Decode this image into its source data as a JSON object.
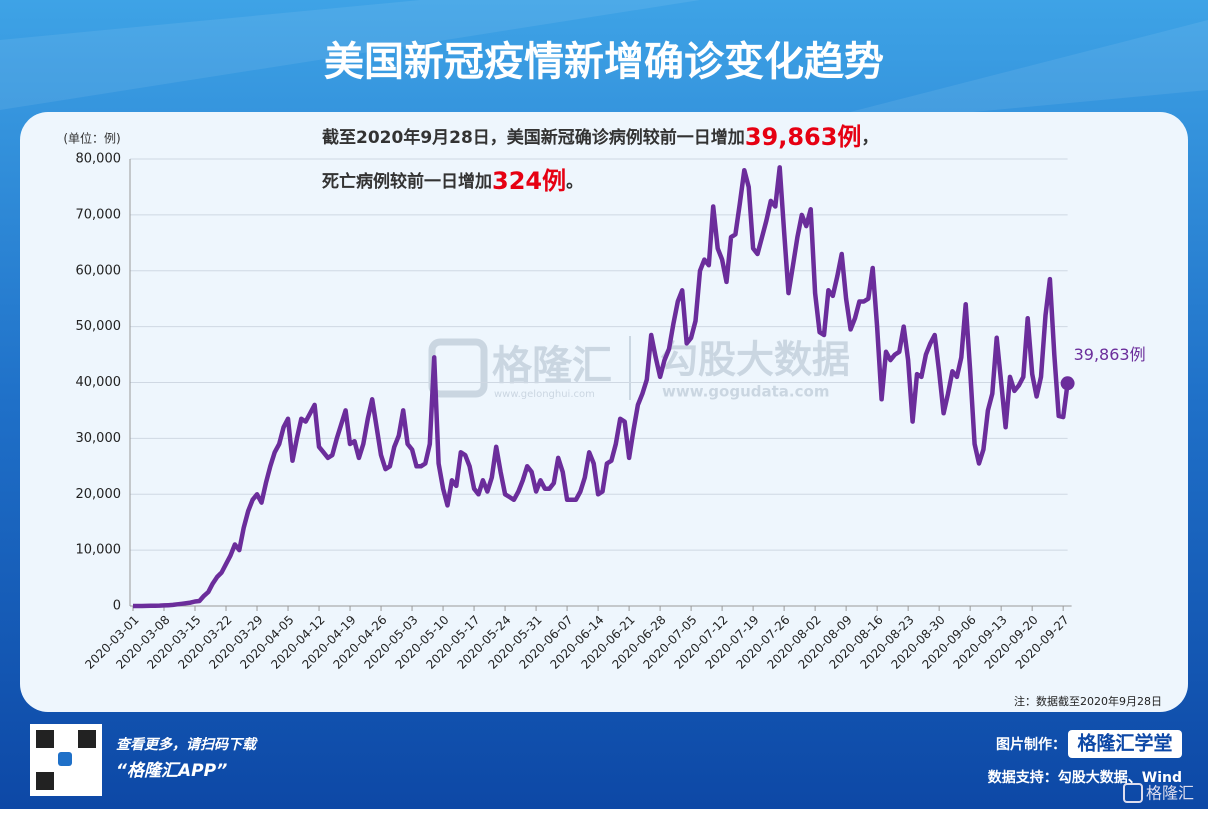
{
  "title": "美国新冠疫情新增确诊变化趋势",
  "chart_data": {
    "type": "line",
    "y_unit": "(单位：例)",
    "note": "注：数据截至2020年9月28日",
    "annotations": [
      [
        "截至2020年9月28日，美国新冠确诊病例较前一日增加",
        "39,863例",
        "，"
      ],
      [
        "死亡病例较前一日增加",
        "324例",
        "。"
      ]
    ],
    "end_label": "39,863例",
    "color": "#6b2d9b",
    "grid": true,
    "ylim": [
      0,
      80000
    ],
    "yticks": [
      0,
      {
        "value": 10000,
        "label": "10,000"
      },
      {
        "value": 20000,
        "label": "20,000"
      },
      {
        "value": 30000,
        "label": "30,000"
      },
      {
        "value": 40000,
        "label": "40,000"
      },
      {
        "value": 50000,
        "label": "50,000"
      },
      {
        "value": 60000,
        "label": "60,000"
      },
      {
        "value": 70000,
        "label": "70,000"
      },
      {
        "value": 80000,
        "label": "80,000"
      }
    ],
    "xticks": [
      "2020-03-01",
      "2020-03-08",
      "2020-03-15",
      "2020-03-22",
      "2020-03-29",
      "2020-04-05",
      "2020-04-12",
      "2020-04-19",
      "2020-04-26",
      "2020-05-03",
      "2020-05-10",
      "2020-05-17",
      "2020-05-24",
      "2020-05-31",
      "2020-06-07",
      "2020-06-14",
      "2020-06-21",
      "2020-06-28",
      "2020-07-05",
      "2020-07-12",
      "2020-07-19",
      "2020-07-26",
      "2020-08-02",
      "2020-08-09",
      "2020-08-16",
      "2020-08-23",
      "2020-08-30",
      "2020-09-06",
      "2020-09-13",
      "2020-09-20",
      "2020-09-27"
    ],
    "x": [
      "2020-03-01",
      "2020-03-02",
      "2020-03-03",
      "2020-03-04",
      "2020-03-05",
      "2020-03-06",
      "2020-03-07",
      "2020-03-08",
      "2020-03-09",
      "2020-03-10",
      "2020-03-11",
      "2020-03-12",
      "2020-03-13",
      "2020-03-14",
      "2020-03-15",
      "2020-03-16",
      "2020-03-17",
      "2020-03-18",
      "2020-03-19",
      "2020-03-20",
      "2020-03-21",
      "2020-03-22",
      "2020-03-23",
      "2020-03-24",
      "2020-03-25",
      "2020-03-26",
      "2020-03-27",
      "2020-03-28",
      "2020-03-29",
      "2020-03-30",
      "2020-03-31",
      "2020-04-01",
      "2020-04-02",
      "2020-04-03",
      "2020-04-04",
      "2020-04-05",
      "2020-04-06",
      "2020-04-07",
      "2020-04-08",
      "2020-04-09",
      "2020-04-10",
      "2020-04-11",
      "2020-04-12",
      "2020-04-13",
      "2020-04-14",
      "2020-04-15",
      "2020-04-16",
      "2020-04-17",
      "2020-04-18",
      "2020-04-19",
      "2020-04-20",
      "2020-04-21",
      "2020-04-22",
      "2020-04-23",
      "2020-04-24",
      "2020-04-25",
      "2020-04-26",
      "2020-04-27",
      "2020-04-28",
      "2020-04-29",
      "2020-04-30",
      "2020-05-01",
      "2020-05-02",
      "2020-05-03",
      "2020-05-04",
      "2020-05-05",
      "2020-05-06",
      "2020-05-07",
      "2020-05-08",
      "2020-05-09",
      "2020-05-10",
      "2020-05-11",
      "2020-05-12",
      "2020-05-13",
      "2020-05-14",
      "2020-05-15",
      "2020-05-16",
      "2020-05-17",
      "2020-05-18",
      "2020-05-19",
      "2020-05-20",
      "2020-05-21",
      "2020-05-22",
      "2020-05-23",
      "2020-05-24",
      "2020-05-25",
      "2020-05-26",
      "2020-05-27",
      "2020-05-28",
      "2020-05-29",
      "2020-05-30",
      "2020-05-31",
      "2020-06-01",
      "2020-06-02",
      "2020-06-03",
      "2020-06-04",
      "2020-06-05",
      "2020-06-06",
      "2020-06-07",
      "2020-06-08",
      "2020-06-09",
      "2020-06-10",
      "2020-06-11",
      "2020-06-12",
      "2020-06-13",
      "2020-06-14",
      "2020-06-15",
      "2020-06-16",
      "2020-06-17",
      "2020-06-18",
      "2020-06-19",
      "2020-06-20",
      "2020-06-21",
      "2020-06-22",
      "2020-06-23",
      "2020-06-24",
      "2020-06-25",
      "2020-06-26",
      "2020-06-27",
      "2020-06-28",
      "2020-06-29",
      "2020-06-30",
      "2020-07-01",
      "2020-07-02",
      "2020-07-03",
      "2020-07-04",
      "2020-07-05",
      "2020-07-06",
      "2020-07-07",
      "2020-07-08",
      "2020-07-09",
      "2020-07-10",
      "2020-07-11",
      "2020-07-12",
      "2020-07-13",
      "2020-07-14",
      "2020-07-15",
      "2020-07-16",
      "2020-07-17",
      "2020-07-18",
      "2020-07-19",
      "2020-07-20",
      "2020-07-21",
      "2020-07-22",
      "2020-07-23",
      "2020-07-24",
      "2020-07-25",
      "2020-07-26",
      "2020-07-27",
      "2020-07-28",
      "2020-07-29",
      "2020-07-30",
      "2020-07-31",
      "2020-08-01",
      "2020-08-02",
      "2020-08-03",
      "2020-08-04",
      "2020-08-05",
      "2020-08-06",
      "2020-08-07",
      "2020-08-08",
      "2020-08-09",
      "2020-08-10",
      "2020-08-11",
      "2020-08-12",
      "2020-08-13",
      "2020-08-14",
      "2020-08-15",
      "2020-08-16",
      "2020-08-17",
      "2020-08-18",
      "2020-08-19",
      "2020-08-20",
      "2020-08-21",
      "2020-08-22",
      "2020-08-23",
      "2020-08-24",
      "2020-08-25",
      "2020-08-26",
      "2020-08-27",
      "2020-08-28",
      "2020-08-29",
      "2020-08-30",
      "2020-08-31",
      "2020-09-01",
      "2020-09-02",
      "2020-09-03",
      "2020-09-04",
      "2020-09-05",
      "2020-09-06",
      "2020-09-07",
      "2020-09-08",
      "2020-09-09",
      "2020-09-10",
      "2020-09-11",
      "2020-09-12",
      "2020-09-13",
      "2020-09-14",
      "2020-09-15",
      "2020-09-16",
      "2020-09-17",
      "2020-09-18",
      "2020-09-19",
      "2020-09-20",
      "2020-09-21",
      "2020-09-22",
      "2020-09-23",
      "2020-09-24",
      "2020-09-25",
      "2020-09-26",
      "2020-09-27",
      "2020-09-28"
    ],
    "values": [
      0,
      0,
      0,
      20,
      30,
      50,
      80,
      100,
      150,
      200,
      300,
      400,
      500,
      600,
      800,
      900,
      1800,
      2500,
      4000,
      5200,
      6000,
      7500,
      9000,
      11000,
      10000,
      14000,
      17000,
      19000,
      20000,
      18500,
      22000,
      25000,
      27500,
      29000,
      32000,
      33500,
      26000,
      30000,
      33500,
      33000,
      34500,
      36000,
      28500,
      27500,
      26500,
      27000,
      30000,
      32500,
      35000,
      29000,
      29500,
      26500,
      29000,
      33500,
      37000,
      32000,
      27000,
      24500,
      25000,
      28500,
      30500,
      35000,
      29000,
      28000,
      25000,
      25000,
      25500,
      29000,
      44500,
      25500,
      21000,
      18000,
      22500,
      21500,
      27500,
      27000,
      25000,
      21000,
      20000,
      22500,
      20500,
      23000,
      28500,
      24000,
      20000,
      19500,
      19000,
      20500,
      22500,
      25000,
      24000,
      20500,
      22500,
      21000,
      21000,
      22000,
      26500,
      24000,
      19000,
      19000,
      19000,
      20500,
      23000,
      27500,
      25500,
      20000,
      20500,
      25500,
      26000,
      29000,
      33500,
      33000,
      26500,
      31500,
      36000,
      38000,
      40500,
      48500,
      44500,
      41000,
      44000,
      46000,
      50500,
      54500,
      56500,
      47000,
      48000,
      51000,
      60000,
      62000,
      61000,
      71500,
      64000,
      62000,
      58000,
      66000,
      66500,
      72000,
      78000,
      75000,
      64000,
      63000,
      66000,
      69000,
      72500,
      71500,
      78500,
      67000,
      56000,
      61000,
      66000,
      70000,
      68000,
      71000,
      56000,
      49000,
      48500,
      56500,
      55500,
      59000,
      63000,
      55000,
      49500,
      51500,
      54500,
      54500,
      55000,
      60500,
      50000,
      37000,
      45500,
      44000,
      45000,
      45500,
      50000,
      44000,
      33000,
      41500,
      41000,
      45000,
      47000,
      48500,
      42000,
      34500,
      38000,
      42000,
      41000,
      44500,
      54000,
      42000,
      29000,
      25500,
      28000,
      35000,
      38000,
      48000,
      40000,
      32000,
      41000,
      38500,
      39500,
      41000,
      51500,
      41500,
      37500,
      41000,
      52000,
      58500,
      45000,
      34000,
      33800,
      39863
    ]
  },
  "watermark": {
    "brand": "格隆汇",
    "brand_url": "www.gelonghui.com",
    "partner": "勾股大数据",
    "partner_url": "www.gogudata.com"
  },
  "footer": {
    "scan": "查看更多，请扫码下载",
    "app": "“格隆汇APP”",
    "made_by": "图片制作：",
    "maker": "格隆汇学堂",
    "source": "数据支持：勾股大数据、Wind",
    "logo": "格隆汇"
  }
}
